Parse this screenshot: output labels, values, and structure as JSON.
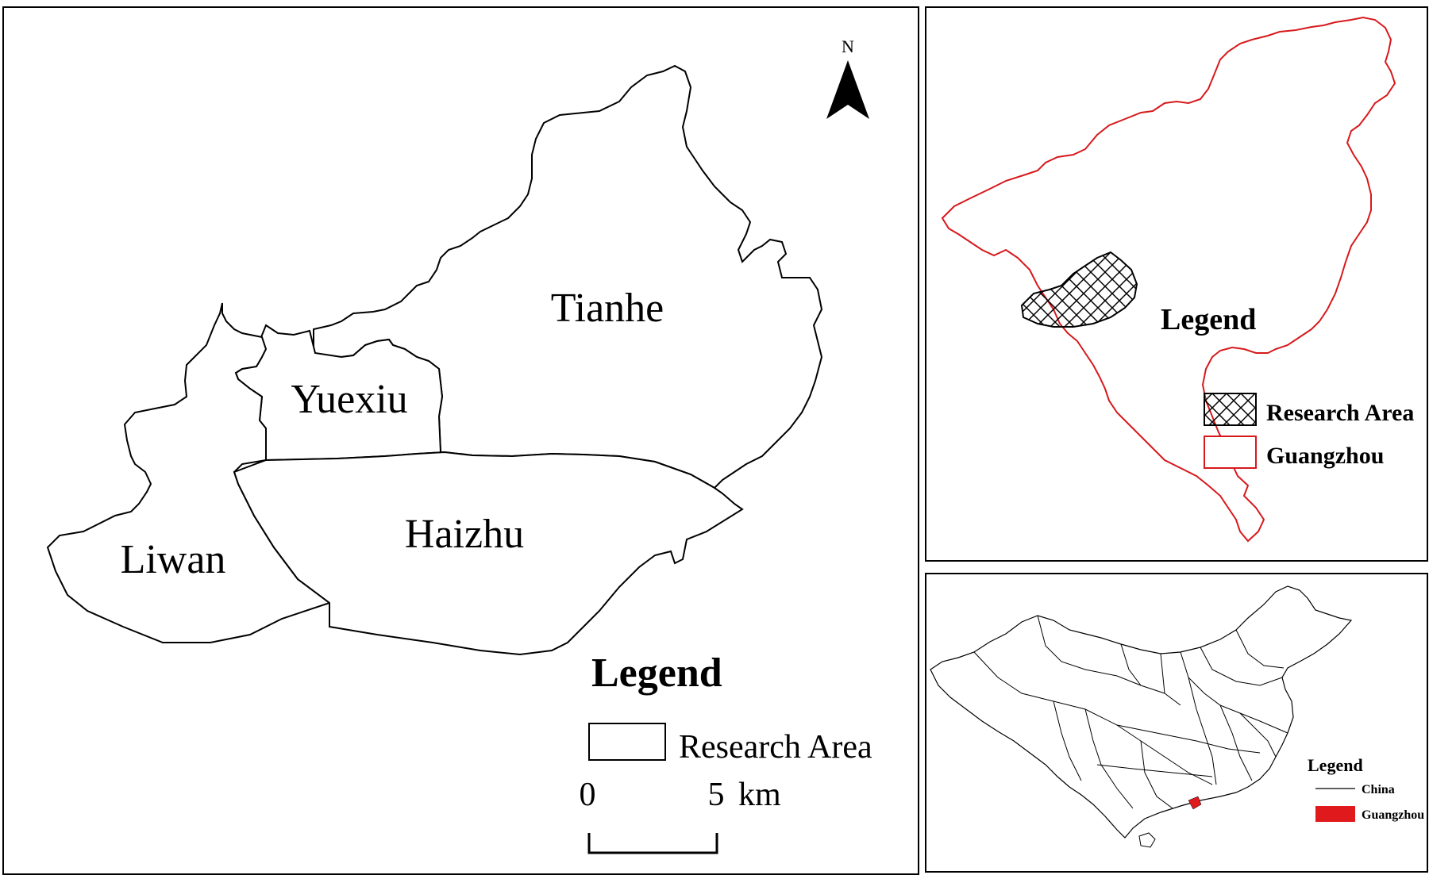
{
  "main_map": {
    "north_label": "N",
    "districts": {
      "tianhe": "Tianhe",
      "yuexiu": "Yuexiu",
      "haizhu": "Haizhu",
      "liwan": "Liwan"
    },
    "legend_title": "Legend",
    "legend_item": "Research Area",
    "scale": {
      "start": "0",
      "end": "5",
      "unit": "km"
    }
  },
  "guangzhou_inset": {
    "legend_title": "Legend",
    "items": [
      "Research Area",
      "Guangzhou"
    ],
    "colors": {
      "boundary": "#d7191c"
    }
  },
  "china_inset": {
    "legend_title": "Legend",
    "items": [
      "China",
      "Guangzhou"
    ],
    "colors": {
      "highlight": "#e0191c"
    }
  }
}
